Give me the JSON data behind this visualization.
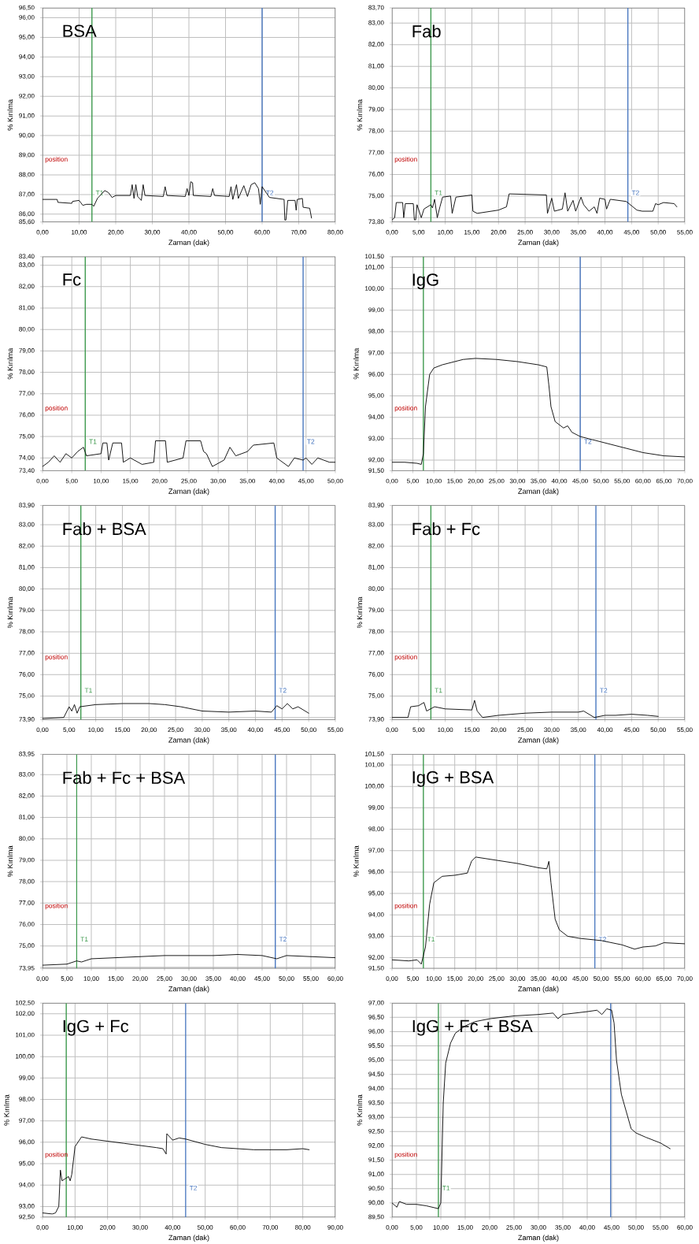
{
  "chart_data": [
    {
      "type": "line",
      "title": "BSA",
      "xlabel": "Zaman (dak)",
      "ylabel": "% Kırılma",
      "grid": true,
      "xlim": [
        0,
        80
      ],
      "ylim": [
        85.6,
        96.5
      ],
      "xticks": [
        {
          "value": 0,
          "label": "0,00"
        },
        {
          "value": 10,
          "label": "10,00"
        },
        {
          "value": 20,
          "label": "20,00"
        },
        {
          "value": 30,
          "label": "30,00"
        },
        {
          "value": 40,
          "label": "40,00"
        },
        {
          "value": 50,
          "label": "50,00"
        },
        {
          "value": 60,
          "label": "60,00"
        },
        {
          "value": 70,
          "label": "70,00"
        },
        {
          "value": 80,
          "label": "80,00"
        }
      ],
      "yticks": [
        {
          "value": 85.6,
          "label": "85,60"
        },
        {
          "value": 86,
          "label": "86,00"
        },
        {
          "value": 87,
          "label": "87,00"
        },
        {
          "value": 88,
          "label": "88,00"
        },
        {
          "value": 89,
          "label": "89,00"
        },
        {
          "value": 90,
          "label": "90,00"
        },
        {
          "value": 91,
          "label": "91,00"
        },
        {
          "value": 92,
          "label": "92,00"
        },
        {
          "value": 93,
          "label": "93,00"
        },
        {
          "value": 94,
          "label": "94,00"
        },
        {
          "value": 95,
          "label": "95,00"
        },
        {
          "value": 96,
          "label": "96,00"
        },
        {
          "value": 96.5,
          "label": "96,50"
        }
      ],
      "annotations": [
        "position"
      ],
      "ref_lines": [
        {
          "axis": "x",
          "value": 13.5,
          "label": "T1",
          "color": "#3f9a4f"
        },
        {
          "axis": "x",
          "value": 60,
          "label": "T2",
          "color": "#4a78c0"
        }
      ],
      "series": [
        {
          "color": "#000000",
          "x": [
            0,
            4,
            4.2,
            8,
            8.2,
            10,
            11,
            12,
            13.5,
            14,
            15,
            17,
            18,
            19,
            20,
            24,
            24.5,
            25,
            25.5,
            26,
            27,
            27.5,
            28,
            33,
            33.5,
            34,
            39,
            39.5,
            40,
            40.5,
            41,
            41.2,
            46,
            46.5,
            47,
            51,
            51.5,
            52,
            53,
            53.5,
            55,
            56,
            57,
            58,
            59,
            59.5,
            60,
            62,
            66,
            66.2,
            66.5,
            67,
            69,
            69.3,
            69.6,
            71,
            71.2,
            73,
            73.5
          ],
          "values": [
            86.75,
            86.75,
            86.6,
            86.55,
            86.65,
            86.7,
            86.45,
            86.5,
            86.5,
            86.4,
            86.8,
            87.2,
            87.1,
            86.85,
            86.95,
            86.95,
            87.5,
            86.8,
            87.5,
            86.9,
            86.7,
            87.5,
            86.95,
            86.9,
            87.4,
            86.95,
            86.9,
            87.3,
            86.95,
            87.65,
            87.6,
            86.95,
            86.9,
            87.3,
            86.95,
            86.9,
            87.4,
            86.75,
            87.5,
            86.8,
            87.45,
            86.9,
            87.5,
            87.6,
            87.3,
            86.5,
            87.4,
            86.85,
            86.75,
            85.7,
            85.7,
            86.7,
            86.7,
            86.2,
            86.75,
            86.8,
            86.35,
            86.3,
            85.8
          ]
        }
      ]
    },
    {
      "type": "line",
      "title": "Fab",
      "xlabel": "Zaman (dak)",
      "ylabel": "% Kırılma",
      "grid": true,
      "xlim": [
        0,
        55
      ],
      "ylim": [
        73.8,
        83.7
      ],
      "xticks": [
        {
          "value": 0,
          "label": "0,00"
        },
        {
          "value": 5,
          "label": "5,00"
        },
        {
          "value": 10,
          "label": "10,00"
        },
        {
          "value": 15,
          "label": "15,00"
        },
        {
          "value": 20,
          "label": "20,00"
        },
        {
          "value": 25,
          "label": "25,00"
        },
        {
          "value": 30,
          "label": "30,00"
        },
        {
          "value": 35,
          "label": "35,00"
        },
        {
          "value": 40,
          "label": "40,00"
        },
        {
          "value": 45,
          "label": "45,00"
        },
        {
          "value": 50,
          "label": "50,00"
        },
        {
          "value": 55,
          "label": "55,00"
        }
      ],
      "yticks": [
        {
          "value": 73.8,
          "label": "73,80"
        },
        {
          "value": 74,
          "label": null
        },
        {
          "value": 75,
          "label": "75,00"
        },
        {
          "value": 76,
          "label": "76,00"
        },
        {
          "value": 77,
          "label": "77,00"
        },
        {
          "value": 78,
          "label": "78,00"
        },
        {
          "value": 79,
          "label": "79,00"
        },
        {
          "value": 80,
          "label": "80,00"
        },
        {
          "value": 81,
          "label": "81,00"
        },
        {
          "value": 82,
          "label": "82,00"
        },
        {
          "value": 83,
          "label": "83,00"
        },
        {
          "value": 83.7,
          "label": "83,70"
        }
      ],
      "annotations": [
        "position"
      ],
      "ref_lines": [
        {
          "axis": "x",
          "value": 7.3,
          "label": "T1",
          "color": "#3f9a4f"
        },
        {
          "axis": "x",
          "value": 44.3,
          "label": "T2",
          "color": "#4a78c0"
        }
      ],
      "series": [
        {
          "color": "#000000",
          "x": [
            0,
            0.5,
            0.8,
            2,
            2.2,
            2.5,
            4,
            4.2,
            4.45,
            4.7,
            5.5,
            6,
            7.3,
            7.6,
            8,
            8.5,
            9,
            9.5,
            11,
            11.3,
            12,
            15,
            15.2,
            16,
            20,
            21.5,
            22,
            29,
            29.2,
            30,
            30.5,
            32,
            32.5,
            33,
            34,
            34.5,
            35.5,
            36,
            37,
            38,
            38.5,
            39,
            40,
            40.3,
            41,
            44,
            45,
            46,
            47,
            49,
            49.5,
            50,
            51,
            53,
            53.5
          ],
          "values": [
            73.9,
            74.0,
            74.7,
            74.7,
            74.0,
            74.65,
            74.65,
            73.9,
            73.9,
            74.6,
            74.0,
            74.4,
            74.6,
            74.45,
            74.85,
            74.0,
            74.5,
            74.95,
            75.0,
            74.2,
            74.95,
            75.05,
            74.3,
            74.2,
            74.35,
            74.5,
            75.1,
            75.05,
            74.2,
            74.9,
            74.3,
            74.4,
            75.15,
            74.3,
            74.8,
            74.3,
            74.95,
            74.6,
            74.3,
            74.5,
            74.2,
            74.9,
            74.85,
            74.4,
            74.85,
            74.75,
            74.55,
            74.35,
            74.3,
            74.3,
            74.65,
            74.6,
            74.7,
            74.65,
            74.5
          ]
        }
      ]
    },
    {
      "type": "line",
      "title": "Fc",
      "xlabel": "Zaman (dak)",
      "ylabel": "% Kırılma",
      "grid": true,
      "xlim": [
        0,
        50
      ],
      "ylim": [
        73.4,
        83.4
      ],
      "xticks": [
        {
          "value": 0,
          "label": "0,00"
        },
        {
          "value": 5,
          "label": "5,00"
        },
        {
          "value": 10,
          "label": "10,00"
        },
        {
          "value": 15,
          "label": "15,00"
        },
        {
          "value": 20,
          "label": "20,00"
        },
        {
          "value": 25,
          "label": "25,00"
        },
        {
          "value": 30,
          "label": "30,00"
        },
        {
          "value": 35,
          "label": "35,00"
        },
        {
          "value": 40,
          "label": "40,00"
        },
        {
          "value": 45,
          "label": "45,00"
        },
        {
          "value": 50,
          "label": "50,00"
        }
      ],
      "yticks": [
        {
          "value": 73.4,
          "label": "73,40"
        },
        {
          "value": 74,
          "label": "74,00"
        },
        {
          "value": 75,
          "label": "75,00"
        },
        {
          "value": 76,
          "label": "76,00"
        },
        {
          "value": 77,
          "label": "77,00"
        },
        {
          "value": 78,
          "label": "78,00"
        },
        {
          "value": 79,
          "label": "79,00"
        },
        {
          "value": 80,
          "label": "80,00"
        },
        {
          "value": 81,
          "label": "81,00"
        },
        {
          "value": 82,
          "label": "82,00"
        },
        {
          "value": 83,
          "label": "83,00"
        },
        {
          "value": 83.4,
          "label": "83,40"
        }
      ],
      "annotations": [
        "position"
      ],
      "ref_lines": [
        {
          "axis": "x",
          "value": 7.3,
          "label": "T1",
          "color": "#3f9a4f"
        },
        {
          "axis": "x",
          "value": 44.5,
          "label": "T2",
          "color": "#4a78c0"
        }
      ],
      "series": [
        {
          "color": "#000000",
          "x": [
            0,
            1,
            2,
            3,
            4,
            5,
            6,
            7,
            7.5,
            10,
            10.3,
            11,
            11.3,
            12,
            13.5,
            13.8,
            15,
            17,
            19,
            19.3,
            21,
            21.3,
            24,
            24.5,
            27,
            27.5,
            28,
            29,
            31,
            32,
            33,
            35,
            36,
            39.5,
            40,
            41,
            42,
            43,
            44.5,
            45,
            46,
            47,
            48,
            49,
            50
          ],
          "values": [
            73.6,
            73.8,
            74.1,
            73.8,
            74.2,
            74.0,
            74.3,
            74.5,
            74.1,
            74.2,
            74.7,
            74.7,
            73.9,
            74.7,
            74.7,
            73.8,
            74.0,
            73.7,
            73.8,
            74.8,
            74.8,
            73.8,
            74.0,
            74.8,
            74.8,
            74.3,
            74.2,
            73.6,
            73.9,
            74.5,
            74.1,
            74.3,
            74.6,
            74.7,
            74.0,
            73.8,
            73.6,
            74.0,
            73.9,
            74.0,
            73.7,
            74.0,
            73.9,
            73.8,
            73.8
          ]
        }
      ]
    },
    {
      "type": "line",
      "title": "IgG",
      "xlabel": "Zaman (dak)",
      "ylabel": "% Kırılma",
      "grid": true,
      "xlim": [
        0,
        70
      ],
      "ylim": [
        91.5,
        101.5
      ],
      "xticks": [
        {
          "value": 0,
          "label": "0,00"
        },
        {
          "value": 5,
          "label": "5,00"
        },
        {
          "value": 10,
          "label": "10,00"
        },
        {
          "value": 15,
          "label": "15,00"
        },
        {
          "value": 20,
          "label": "20,00"
        },
        {
          "value": 25,
          "label": "25,00"
        },
        {
          "value": 30,
          "label": "30,00"
        },
        {
          "value": 35,
          "label": "35,00"
        },
        {
          "value": 40,
          "label": "40,00"
        },
        {
          "value": 45,
          "label": "45,00"
        },
        {
          "value": 50,
          "label": "50,00"
        },
        {
          "value": 55,
          "label": "55,00"
        },
        {
          "value": 60,
          "label": "60,00"
        },
        {
          "value": 65,
          "label": "65,00"
        },
        {
          "value": 70,
          "label": "70,00"
        }
      ],
      "yticks": [
        {
          "value": 91.5,
          "label": "91,50"
        },
        {
          "value": 92,
          "label": "92,00"
        },
        {
          "value": 93,
          "label": "93,00"
        },
        {
          "value": 94,
          "label": "94,00"
        },
        {
          "value": 95,
          "label": "95,00"
        },
        {
          "value": 96,
          "label": "96,00"
        },
        {
          "value": 97,
          "label": "97,00"
        },
        {
          "value": 98,
          "label": "98,00"
        },
        {
          "value": 99,
          "label": "99,00"
        },
        {
          "value": 100,
          "label": "100,00"
        },
        {
          "value": 101,
          "label": "101,00"
        },
        {
          "value": 101.5,
          "label": "101,50"
        }
      ],
      "annotations": [
        "position"
      ],
      "ref_lines": [
        {
          "axis": "x",
          "value": 7.5,
          "color": "#3f9a4f"
        },
        {
          "axis": "x",
          "value": 45,
          "label": "T2",
          "color": "#4a78c0"
        }
      ],
      "series": [
        {
          "color": "#000000",
          "x": [
            0,
            3,
            6,
            7,
            7.5,
            8,
            9,
            10,
            12,
            15,
            17,
            20,
            25,
            30,
            35,
            37,
            37.5,
            38,
            39,
            41,
            42,
            43,
            45,
            50,
            55,
            60,
            65,
            70
          ],
          "values": [
            91.9,
            91.9,
            91.85,
            91.8,
            92.3,
            94.5,
            96.0,
            96.3,
            96.45,
            96.6,
            96.7,
            96.75,
            96.7,
            96.6,
            96.45,
            96.35,
            95.5,
            94.5,
            93.8,
            93.5,
            93.6,
            93.3,
            93.1,
            92.85,
            92.6,
            92.35,
            92.2,
            92.15
          ]
        }
      ]
    },
    {
      "type": "line",
      "title": "Fab + BSA",
      "xlabel": "Zaman (dak)",
      "ylabel": "% Kırılma",
      "grid": true,
      "xlim": [
        0,
        55
      ],
      "ylim": [
        73.9,
        83.9
      ],
      "xticks": [
        {
          "value": 0,
          "label": "0,00"
        },
        {
          "value": 5,
          "label": "5,00"
        },
        {
          "value": 10,
          "label": "10,00"
        },
        {
          "value": 15,
          "label": "15,00"
        },
        {
          "value": 20,
          "label": "20,00"
        },
        {
          "value": 25,
          "label": "25,00"
        },
        {
          "value": 30,
          "label": "30,00"
        },
        {
          "value": 35,
          "label": "35,00"
        },
        {
          "value": 40,
          "label": "40,00"
        },
        {
          "value": 45,
          "label": "45,00"
        },
        {
          "value": 50,
          "label": "50,00"
        },
        {
          "value": 55,
          "label": "55,00"
        }
      ],
      "yticks": [
        {
          "value": 73.9,
          "label": "73,90"
        },
        {
          "value": 74,
          "label": null
        },
        {
          "value": 75,
          "label": "75,00"
        },
        {
          "value": 76,
          "label": "76,00"
        },
        {
          "value": 77,
          "label": "77,00"
        },
        {
          "value": 78,
          "label": "78,00"
        },
        {
          "value": 79,
          "label": "79,00"
        },
        {
          "value": 80,
          "label": "80,00"
        },
        {
          "value": 81,
          "label": "81,00"
        },
        {
          "value": 82,
          "label": "82,00"
        },
        {
          "value": 83,
          "label": "83,00"
        },
        {
          "value": 83.9,
          "label": "83,90"
        }
      ],
      "annotations": [
        "position"
      ],
      "ref_lines": [
        {
          "axis": "x",
          "value": 7.2,
          "label": "T1",
          "color": "#3f9a4f"
        },
        {
          "axis": "x",
          "value": 43.7,
          "label": "T2",
          "color": "#4a78c0"
        }
      ],
      "series": [
        {
          "color": "#000000",
          "x": [
            0,
            4,
            5,
            5.5,
            6,
            6.5,
            7,
            10,
            15,
            20,
            23,
            26,
            30,
            35,
            40,
            43,
            44,
            45,
            46,
            47,
            48,
            50
          ],
          "values": [
            73.95,
            74.0,
            74.5,
            74.3,
            74.6,
            74.2,
            74.5,
            74.6,
            74.65,
            74.65,
            74.6,
            74.5,
            74.3,
            74.25,
            74.3,
            74.25,
            74.55,
            74.4,
            74.65,
            74.4,
            74.5,
            74.2
          ]
        }
      ]
    },
    {
      "type": "line",
      "title": "Fab + Fc",
      "xlabel": "Zaman (dak)",
      "ylabel": "% Kırılma",
      "grid": true,
      "xlim": [
        0,
        55
      ],
      "ylim": [
        73.9,
        83.9
      ],
      "xticks": [
        {
          "value": 0,
          "label": "0,00"
        },
        {
          "value": 5,
          "label": "5,00"
        },
        {
          "value": 10,
          "label": "10,00"
        },
        {
          "value": 15,
          "label": "15,00"
        },
        {
          "value": 20,
          "label": "20,00"
        },
        {
          "value": 25,
          "label": "25,00"
        },
        {
          "value": 30,
          "label": "30,00"
        },
        {
          "value": 35,
          "label": "35,00"
        },
        {
          "value": 40,
          "label": "40,00"
        },
        {
          "value": 45,
          "label": "45,00"
        },
        {
          "value": 50,
          "label": "50,00"
        },
        {
          "value": 55,
          "label": "55,00"
        }
      ],
      "yticks": [
        {
          "value": 73.9,
          "label": "73,90"
        },
        {
          "value": 74,
          "label": null
        },
        {
          "value": 75,
          "label": "75,00"
        },
        {
          "value": 76,
          "label": "76,00"
        },
        {
          "value": 77,
          "label": "77,00"
        },
        {
          "value": 78,
          "label": "78,00"
        },
        {
          "value": 79,
          "label": "79,00"
        },
        {
          "value": 80,
          "label": "80,00"
        },
        {
          "value": 81,
          "label": "81,00"
        },
        {
          "value": 82,
          "label": "82,00"
        },
        {
          "value": 83,
          "label": "83,00"
        },
        {
          "value": 83.9,
          "label": "83,90"
        }
      ],
      "annotations": [
        "position"
      ],
      "ref_lines": [
        {
          "axis": "x",
          "value": 7.3,
          "label": "T1",
          "color": "#3f9a4f"
        },
        {
          "axis": "x",
          "value": 38.3,
          "label": "T2",
          "color": "#4a78c0"
        }
      ],
      "series": [
        {
          "color": "#000000",
          "x": [
            0,
            3,
            3.5,
            5,
            6,
            6.5,
            8,
            10,
            15,
            15.5,
            16,
            17,
            20,
            25,
            30,
            35,
            36,
            38,
            40,
            42,
            45,
            48,
            50
          ],
          "values": [
            74.0,
            74.0,
            74.5,
            74.55,
            74.7,
            74.3,
            74.5,
            74.4,
            74.35,
            74.8,
            74.3,
            74.0,
            74.1,
            74.2,
            74.25,
            74.25,
            74.3,
            74.0,
            74.1,
            74.1,
            74.15,
            74.1,
            74.05
          ]
        }
      ]
    },
    {
      "type": "line",
      "title": "Fab + Fc + BSA",
      "xlabel": "Zaman (dak)",
      "ylabel": "% Kırılma",
      "grid": true,
      "xlim": [
        0,
        60
      ],
      "ylim": [
        73.95,
        83.95
      ],
      "xticks": [
        {
          "value": 0,
          "label": "0,00"
        },
        {
          "value": 5,
          "label": "5,00"
        },
        {
          "value": 10,
          "label": "10,00"
        },
        {
          "value": 15,
          "label": "15,00"
        },
        {
          "value": 20,
          "label": "20,00"
        },
        {
          "value": 25,
          "label": "25,00"
        },
        {
          "value": 30,
          "label": "30,00"
        },
        {
          "value": 35,
          "label": "35,00"
        },
        {
          "value": 40,
          "label": "40,00"
        },
        {
          "value": 45,
          "label": "45,00"
        },
        {
          "value": 50,
          "label": "50,00"
        },
        {
          "value": 55,
          "label": "55,00"
        },
        {
          "value": 60,
          "label": "60,00"
        }
      ],
      "yticks": [
        {
          "value": 73.95,
          "label": "73,95"
        },
        {
          "value": 74,
          "label": null
        },
        {
          "value": 75,
          "label": "75,00"
        },
        {
          "value": 76,
          "label": "76,00"
        },
        {
          "value": 77,
          "label": "77,00"
        },
        {
          "value": 78,
          "label": "78,00"
        },
        {
          "value": 79,
          "label": "79,00"
        },
        {
          "value": 80,
          "label": "80,00"
        },
        {
          "value": 81,
          "label": "81,00"
        },
        {
          "value": 82,
          "label": "82,00"
        },
        {
          "value": 83,
          "label": "83,00"
        },
        {
          "value": 83.95,
          "label": "83,95"
        }
      ],
      "annotations": [
        "position"
      ],
      "ref_lines": [
        {
          "axis": "x",
          "value": 7,
          "label": "T1",
          "color": "#3f9a4f"
        },
        {
          "axis": "x",
          "value": 47.7,
          "label": "T2",
          "color": "#4a78c0"
        }
      ],
      "series": [
        {
          "color": "#000000",
          "x": [
            0,
            5,
            7,
            8,
            10,
            15,
            20,
            25,
            30,
            35,
            40,
            45,
            48,
            50,
            55,
            60
          ],
          "values": [
            74.1,
            74.15,
            74.3,
            74.25,
            74.4,
            74.45,
            74.5,
            74.55,
            74.55,
            74.55,
            74.6,
            74.55,
            74.4,
            74.55,
            74.5,
            74.45
          ]
        }
      ]
    },
    {
      "type": "line",
      "title": "IgG + BSA",
      "xlabel": "Zaman (dak)",
      "ylabel": "% Kırılma",
      "grid": true,
      "xlim": [
        0,
        70
      ],
      "ylim": [
        91.5,
        101.5
      ],
      "xticks": [
        {
          "value": 0,
          "label": "0,00"
        },
        {
          "value": 5,
          "label": "5,00"
        },
        {
          "value": 10,
          "label": "10,00"
        },
        {
          "value": 15,
          "label": "15,00"
        },
        {
          "value": 20,
          "label": "20,00"
        },
        {
          "value": 25,
          "label": "25,00"
        },
        {
          "value": 30,
          "label": "30,00"
        },
        {
          "value": 35,
          "label": "35,00"
        },
        {
          "value": 40,
          "label": "40,00"
        },
        {
          "value": 45,
          "label": "45,00"
        },
        {
          "value": 50,
          "label": "50,00"
        },
        {
          "value": 55,
          "label": "55,00"
        },
        {
          "value": 60,
          "label": "60,00"
        },
        {
          "value": 65,
          "label": "65,00"
        },
        {
          "value": 70,
          "label": "70,00"
        }
      ],
      "yticks": [
        {
          "value": 91.5,
          "label": "91,50"
        },
        {
          "value": 92,
          "label": "92,00"
        },
        {
          "value": 93,
          "label": "93,00"
        },
        {
          "value": 94,
          "label": "94,00"
        },
        {
          "value": 95,
          "label": "95,00"
        },
        {
          "value": 96,
          "label": "96,00"
        },
        {
          "value": 97,
          "label": "97,00"
        },
        {
          "value": 98,
          "label": "98,00"
        },
        {
          "value": 99,
          "label": "99,00"
        },
        {
          "value": 100,
          "label": "100,00"
        },
        {
          "value": 101,
          "label": "101,00"
        },
        {
          "value": 101.5,
          "label": "101,50"
        }
      ],
      "annotations": [
        "position"
      ],
      "ref_lines": [
        {
          "axis": "x",
          "value": 7.5,
          "label": "T1",
          "color": "#3f9a4f"
        },
        {
          "axis": "x",
          "value": 48.5,
          "label": "T2",
          "color": "#4a78c0"
        }
      ],
      "series": [
        {
          "color": "#000000",
          "x": [
            0,
            4,
            6,
            7,
            8,
            9,
            10,
            12,
            15,
            18,
            19,
            20,
            25,
            30,
            35,
            37,
            37.5,
            38,
            39,
            40,
            42,
            45,
            50,
            55,
            58,
            60,
            63,
            65,
            70
          ],
          "values": [
            91.9,
            91.85,
            91.9,
            91.7,
            92.5,
            94.5,
            95.5,
            95.8,
            95.85,
            95.95,
            96.5,
            96.7,
            96.55,
            96.4,
            96.2,
            96.15,
            96.5,
            95.5,
            93.8,
            93.3,
            93.0,
            92.9,
            92.8,
            92.6,
            92.4,
            92.5,
            92.55,
            92.7,
            92.65
          ]
        }
      ]
    },
    {
      "type": "line",
      "title": "IgG + Fc",
      "xlabel": "Zaman (dak)",
      "ylabel": "% Kırılma",
      "grid": true,
      "xlim": [
        0,
        90
      ],
      "ylim": [
        92.5,
        102.5
      ],
      "xticks": [
        {
          "value": 0,
          "label": "0,00"
        },
        {
          "value": 10,
          "label": "10,00"
        },
        {
          "value": 20,
          "label": "20,00"
        },
        {
          "value": 30,
          "label": "30,00"
        },
        {
          "value": 40,
          "label": "40,00"
        },
        {
          "value": 50,
          "label": "50,00"
        },
        {
          "value": 60,
          "label": "60,00"
        },
        {
          "value": 70,
          "label": "70,00"
        },
        {
          "value": 80,
          "label": "80,00"
        },
        {
          "value": 90,
          "label": "90,00"
        }
      ],
      "yticks": [
        {
          "value": 92.5,
          "label": "92,50"
        },
        {
          "value": 93,
          "label": "93,00"
        },
        {
          "value": 94,
          "label": "94,00"
        },
        {
          "value": 95,
          "label": "95,00"
        },
        {
          "value": 96,
          "label": "96,00"
        },
        {
          "value": 97,
          "label": "97,00"
        },
        {
          "value": 98,
          "label": "98,00"
        },
        {
          "value": 99,
          "label": "99,00"
        },
        {
          "value": 100,
          "label": "100,00"
        },
        {
          "value": 101,
          "label": "101,00"
        },
        {
          "value": 102,
          "label": "102,00"
        },
        {
          "value": 102.5,
          "label": "102,50"
        }
      ],
      "annotations": [
        "position"
      ],
      "ref_lines": [
        {
          "axis": "x",
          "value": 7.3,
          "color": "#3f9a4f"
        },
        {
          "axis": "x",
          "value": 44,
          "label": "T2",
          "color": "#4a78c0"
        }
      ],
      "series": [
        {
          "color": "#000000",
          "x": [
            0,
            3,
            4,
            5,
            5.5,
            6,
            7,
            8,
            8.5,
            9,
            10,
            12,
            15,
            20,
            25,
            30,
            35,
            37,
            38,
            38.2,
            40,
            42,
            44,
            50,
            55,
            60,
            65,
            70,
            75,
            80,
            82
          ],
          "values": [
            92.7,
            92.65,
            92.7,
            93.0,
            94.7,
            94.2,
            94.3,
            94.4,
            94.2,
            94.5,
            95.8,
            96.25,
            96.15,
            96.05,
            95.95,
            95.85,
            95.75,
            95.7,
            95.45,
            96.4,
            96.1,
            96.2,
            96.15,
            95.9,
            95.75,
            95.7,
            95.65,
            95.65,
            95.65,
            95.7,
            95.65
          ]
        }
      ]
    },
    {
      "type": "line",
      "title": "IgG + Fc + BSA",
      "xlabel": "Zaman (dak)",
      "ylabel": "% Kırılma",
      "grid": true,
      "xlim": [
        0,
        60
      ],
      "ylim": [
        89.5,
        97
      ],
      "xticks": [
        {
          "value": 0,
          "label": "0,00"
        },
        {
          "value": 5,
          "label": "5,00"
        },
        {
          "value": 10,
          "label": "10,00"
        },
        {
          "value": 15,
          "label": "15,00"
        },
        {
          "value": 20,
          "label": "20,00"
        },
        {
          "value": 25,
          "label": "25,00"
        },
        {
          "value": 30,
          "label": "30,00"
        },
        {
          "value": 35,
          "label": "35,00"
        },
        {
          "value": 40,
          "label": "40,00"
        },
        {
          "value": 45,
          "label": "45,00"
        },
        {
          "value": 50,
          "label": "50,00"
        },
        {
          "value": 55,
          "label": "55,00"
        },
        {
          "value": 60,
          "label": "60,00"
        }
      ],
      "yticks": [
        {
          "value": 89.5,
          "label": "89,50"
        },
        {
          "value": 90,
          "label": "90,00"
        },
        {
          "value": 90.5,
          "label": "90,50"
        },
        {
          "value": 91,
          "label": "91,00"
        },
        {
          "value": 91.5,
          "label": "91,50"
        },
        {
          "value": 92,
          "label": "92,00"
        },
        {
          "value": 92.5,
          "label": "92,50"
        },
        {
          "value": 93,
          "label": "93,00"
        },
        {
          "value": 93.5,
          "label": "93,50"
        },
        {
          "value": 94,
          "label": "94,00"
        },
        {
          "value": 94.5,
          "label": "94,50"
        },
        {
          "value": 95,
          "label": "95,00"
        },
        {
          "value": 95.5,
          "label": "95,50"
        },
        {
          "value": 96,
          "label": "96,00"
        },
        {
          "value": 96.5,
          "label": "96,50"
        },
        {
          "value": 97,
          "label": "97,00"
        }
      ],
      "annotations": [
        "position"
      ],
      "ref_lines": [
        {
          "axis": "x",
          "value": 9.5,
          "label": "T1",
          "color": "#3f9a4f"
        },
        {
          "axis": "x",
          "value": 44.8,
          "color": "#4a78c0"
        }
      ],
      "series": [
        {
          "color": "#000000",
          "x": [
            0,
            1,
            1.5,
            3,
            5,
            7,
            9.5,
            10,
            10.5,
            11,
            12,
            13,
            15,
            17,
            20,
            25,
            30,
            33,
            34,
            35,
            40,
            42,
            43,
            44,
            45,
            45.5,
            46,
            47,
            48,
            49,
            50,
            52,
            55,
            57
          ],
          "values": [
            90.0,
            89.85,
            90.05,
            89.95,
            89.95,
            89.9,
            89.8,
            90.0,
            93.5,
            94.9,
            95.6,
            95.95,
            96.2,
            96.35,
            96.45,
            96.55,
            96.6,
            96.65,
            96.45,
            96.6,
            96.7,
            96.75,
            96.6,
            96.8,
            96.75,
            96.3,
            95.0,
            93.8,
            93.2,
            92.6,
            92.45,
            92.3,
            92.1,
            91.9
          ]
        }
      ]
    }
  ]
}
